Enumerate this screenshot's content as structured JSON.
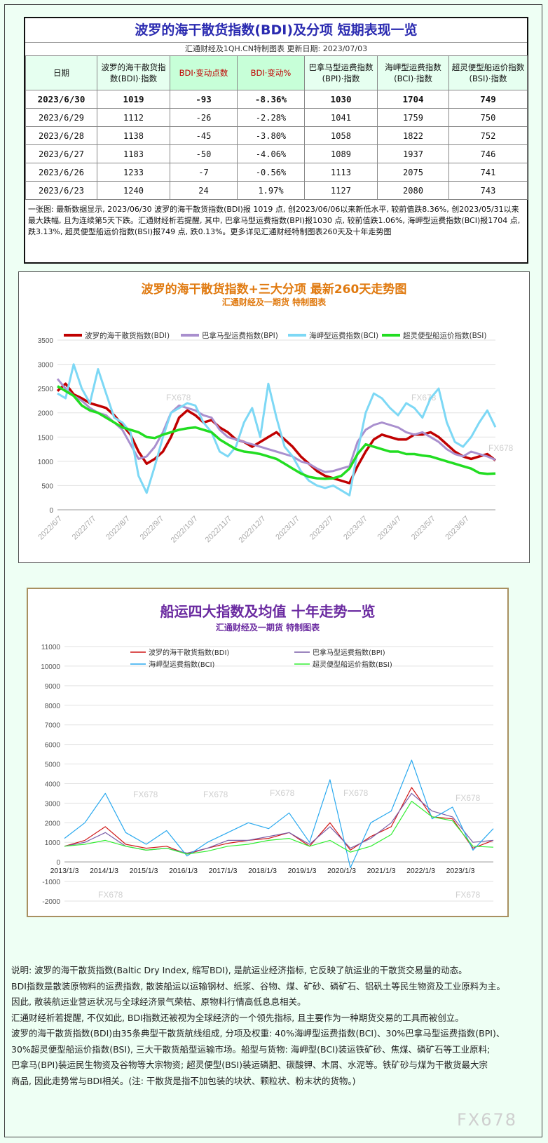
{
  "table_block": {
    "title": "波罗的海干散货指数(BDI)及分项 短期表现一览",
    "subtitle": "汇通财经及1QH.CN特制图表    更新日期: 2023/07/03",
    "headers": [
      "日期",
      "波罗的海干散货指数(BDI)·指数",
      "BDI·变动点数",
      "BDI·变动%",
      "巴拿马型运费指数(BPI)·指数",
      "海岬型运费指数(BCI)·指数",
      "超灵便型船运价指数(BSI)·指数"
    ],
    "rows": [
      [
        "2023/6/30",
        "1019",
        "-93",
        "-8.36%",
        "1030",
        "1704",
        "749"
      ],
      [
        "2023/6/29",
        "1112",
        "-26",
        "-2.28%",
        "1041",
        "1759",
        "750"
      ],
      [
        "2023/6/28",
        "1138",
        "-45",
        "-3.80%",
        "1058",
        "1822",
        "752"
      ],
      [
        "2023/6/27",
        "1183",
        "-50",
        "-4.06%",
        "1089",
        "1937",
        "746"
      ],
      [
        "2023/6/26",
        "1233",
        "-7",
        "-0.56%",
        "1113",
        "2075",
        "741"
      ],
      [
        "2023/6/23",
        "1240",
        "24",
        "1.97%",
        "1127",
        "2080",
        "743"
      ]
    ],
    "note": "一张图: 最新数据显示, 2023/06/30 波罗的海干散货指数(BDI)报 1019 点, 创2023/06/06以来新低水平, 较前值跌8.36%, 创2023/05/31以来最大跌幅, 且为连续第5天下跌。汇通财经析若提醒, 其中, 巴拿马型运费指数(BPI)报1030 点, 较前值跌1.06%, 海岬型运费指数(BCI)报1704 点, 跌3.13%, 超灵便型船运价指数(BSI)报749 点, 跌0.13%。更多详见汇通财经特制图表260天及十年走势图"
  },
  "colors": {
    "bdi": "#c00000",
    "bpi": "#a98fce",
    "bci": "#7dd8f5",
    "bsi": "#22dd22",
    "bdi2": "#d01818",
    "bpi2": "#7b5fa8",
    "bci2": "#2aa9ef",
    "bsi2": "#33ee33"
  },
  "chart_data": [
    {
      "type": "line",
      "title": "波罗的海干散货指数+三大分项  最新260天走势图",
      "subtitle": "汇通财经及一期货  特制图表",
      "watermark": "FX678",
      "legend_position": "top",
      "ylim": [
        0,
        3500
      ],
      "yticks": [
        "0",
        "500",
        "1000",
        "1500",
        "2000",
        "2500",
        "3000",
        "3500"
      ],
      "xtick_labels": [
        "2022/6/7",
        "2022/7/7",
        "2022/8/7",
        "2022/9/7",
        "2022/10/7",
        "2022/11/7",
        "2022/12/7",
        "2023/1/7",
        "2023/2/7",
        "2023/3/7",
        "2023/4/7",
        "2023/5/7",
        "2023/6/7"
      ],
      "x_index": [
        0,
        1,
        2,
        3,
        4,
        5,
        6,
        7,
        8,
        9,
        10,
        11,
        12,
        13,
        14,
        15,
        16,
        17,
        18,
        19,
        20,
        21,
        22,
        23,
        24,
        25,
        26,
        27,
        28,
        29,
        30,
        31,
        32,
        33,
        34,
        35,
        36,
        37,
        38,
        39,
        40,
        41,
        42,
        43,
        44,
        45,
        46,
        47,
        48,
        49,
        50,
        51,
        52,
        53,
        54
      ],
      "series": [
        {
          "name": "波罗的海干散货指数(BDI)",
          "values": [
            2450,
            2600,
            2380,
            2300,
            2200,
            2150,
            2100,
            1950,
            1750,
            1550,
            1200,
            950,
            1050,
            1200,
            1500,
            1900,
            2050,
            1950,
            1800,
            1850,
            1700,
            1600,
            1450,
            1400,
            1300,
            1400,
            1500,
            1600,
            1450,
            1300,
            1100,
            950,
            800,
            700,
            650,
            600,
            550,
            900,
            1200,
            1450,
            1550,
            1500,
            1450,
            1450,
            1550,
            1550,
            1600,
            1500,
            1350,
            1200,
            1100,
            1050,
            1100,
            1150,
            1020
          ]
        },
        {
          "name": "巴拿马型运费指数(BPI)",
          "values": [
            2700,
            2500,
            2350,
            2250,
            2100,
            2000,
            1950,
            1800,
            1650,
            1350,
            1050,
            1100,
            1300,
            1600,
            2000,
            2150,
            2100,
            2050,
            1950,
            1900,
            1650,
            1500,
            1450,
            1400,
            1350,
            1300,
            1250,
            1200,
            1150,
            1100,
            1000,
            950,
            850,
            780,
            800,
            850,
            900,
            1400,
            1650,
            1750,
            1800,
            1750,
            1700,
            1600,
            1550,
            1600,
            1500,
            1400,
            1250,
            1150,
            1100,
            1200,
            1150,
            1100,
            1030
          ]
        },
        {
          "name": "海岬型运费指数(BCI)",
          "values": [
            2400,
            2300,
            3000,
            2500,
            2200,
            2900,
            2400,
            1900,
            1800,
            1600,
            700,
            350,
            900,
            1500,
            2000,
            2100,
            2200,
            2150,
            1800,
            1600,
            1200,
            1100,
            1300,
            1800,
            2100,
            1500,
            2600,
            1900,
            1300,
            1100,
            800,
            600,
            500,
            450,
            500,
            400,
            300,
            1200,
            2000,
            2400,
            2300,
            2100,
            1950,
            2200,
            2100,
            1900,
            2300,
            2500,
            1800,
            1400,
            1300,
            1500,
            1800,
            2050,
            1704
          ]
        },
        {
          "name": "超灵便型船运价指数(BSI)",
          "values": [
            2550,
            2450,
            2350,
            2150,
            2050,
            2000,
            1900,
            1800,
            1700,
            1650,
            1600,
            1500,
            1480,
            1550,
            1600,
            1650,
            1680,
            1700,
            1650,
            1600,
            1450,
            1350,
            1250,
            1200,
            1180,
            1150,
            1100,
            1050,
            950,
            850,
            750,
            680,
            650,
            640,
            650,
            700,
            850,
            1150,
            1350,
            1300,
            1250,
            1200,
            1200,
            1150,
            1150,
            1120,
            1100,
            1050,
            1000,
            950,
            900,
            850,
            760,
            740,
            749
          ]
        }
      ]
    },
    {
      "type": "line",
      "title": "船运四大指数及均值 十年走势一览",
      "subtitle": "汇通财经及一期货 特制图表",
      "watermark": "FX678",
      "legend_position": "top",
      "ylim": [
        -2000,
        11000
      ],
      "yticks": [
        "-2000",
        "-1000",
        "0",
        "1000",
        "2000",
        "3000",
        "4000",
        "5000",
        "6000",
        "7000",
        "8000",
        "9000",
        "10000",
        "11000"
      ],
      "xtick_labels": [
        "2013/1/3",
        "2014/1/3",
        "2015/1/3",
        "2016/1/3",
        "2017/1/3",
        "2018/1/3",
        "2019/1/3",
        "2020/1/3",
        "2021/1/3",
        "2022/1/3",
        "2023/1/3"
      ],
      "x_years": [
        2013.0,
        2013.5,
        2014.0,
        2014.5,
        2015.0,
        2015.5,
        2016.0,
        2016.5,
        2017.0,
        2017.5,
        2018.0,
        2018.5,
        2019.0,
        2019.5,
        2020.0,
        2020.5,
        2021.0,
        2021.5,
        2022.0,
        2022.5,
        2023.0,
        2023.5
      ],
      "series": [
        {
          "name": "波罗的海干散货指数(BDI)",
          "values": [
            800,
            1100,
            1800,
            900,
            700,
            800,
            400,
            700,
            950,
            1100,
            1200,
            1500,
            800,
            2000,
            600,
            1300,
            1800,
            3800,
            2300,
            2200,
            700,
            1100
          ]
        },
        {
          "name": "巴拿马型运费指数(BPI)",
          "values": [
            800,
            1000,
            1500,
            800,
            600,
            700,
            450,
            700,
            1100,
            1100,
            1300,
            1500,
            900,
            1800,
            700,
            1200,
            2000,
            3500,
            2600,
            2300,
            1000,
            1100
          ]
        },
        {
          "name": "海岬型运费指数(BCI)",
          "values": [
            1200,
            2000,
            3500,
            1500,
            900,
            1600,
            300,
            1000,
            1500,
            2000,
            1700,
            2500,
            1000,
            4200,
            -300,
            2000,
            2600,
            5200,
            2200,
            2800,
            600,
            1700
          ]
        },
        {
          "name": "超灵便型船运价指数(BSI)",
          "values": [
            800,
            900,
            1100,
            800,
            600,
            700,
            400,
            550,
            800,
            900,
            1100,
            1200,
            800,
            1100,
            500,
            800,
            1400,
            3100,
            2300,
            2100,
            800,
            750
          ]
        }
      ]
    }
  ],
  "description": [
    "说明: 波罗的海干散货指数(Baltic Dry Index, 缩写BDI), 是航运业经济指标, 它反映了航运业的干散货交易量的动态。",
    "BDI指数是散装原物料的运费指数, 散装船运以运输钢材、纸浆、谷物、煤、矿砂、磷矿石、铝矾土等民生物资及工业原料为主。",
    "因此, 散装航运业营运状况与全球经济景气荣枯、原物料行情高低息息相关。",
    "汇通财经析若提醒, 不仅如此, BDI指数还被视为全球经济的一个领先指标, 且主要作为一种期货交易的工具而被创立。",
    "波罗的海干散货指数(BDI)由35条典型干散货航线组成, 分项及权重: 40%海岬型运费指数(BCI)、30%巴拿马型运费指数(BPI)、",
    "30%超灵便型船运价指数(BSI), 三大干散货船型运输市场。船型与货物: 海岬型(BCI)装运铁矿砂、焦煤、磷矿石等工业原料;",
    "巴拿马(BPI)装运民生物资及谷物等大宗物资; 超灵便型(BSI)装运磷肥、碳酸钾、木屑、水泥等。铁矿砂与煤为干散货最大宗",
    "商品, 因此走势常与BDI相关。(注: 干散货是指不加包装的块状、颗粒状、粉末状的货物。)"
  ],
  "brand": "FX678"
}
